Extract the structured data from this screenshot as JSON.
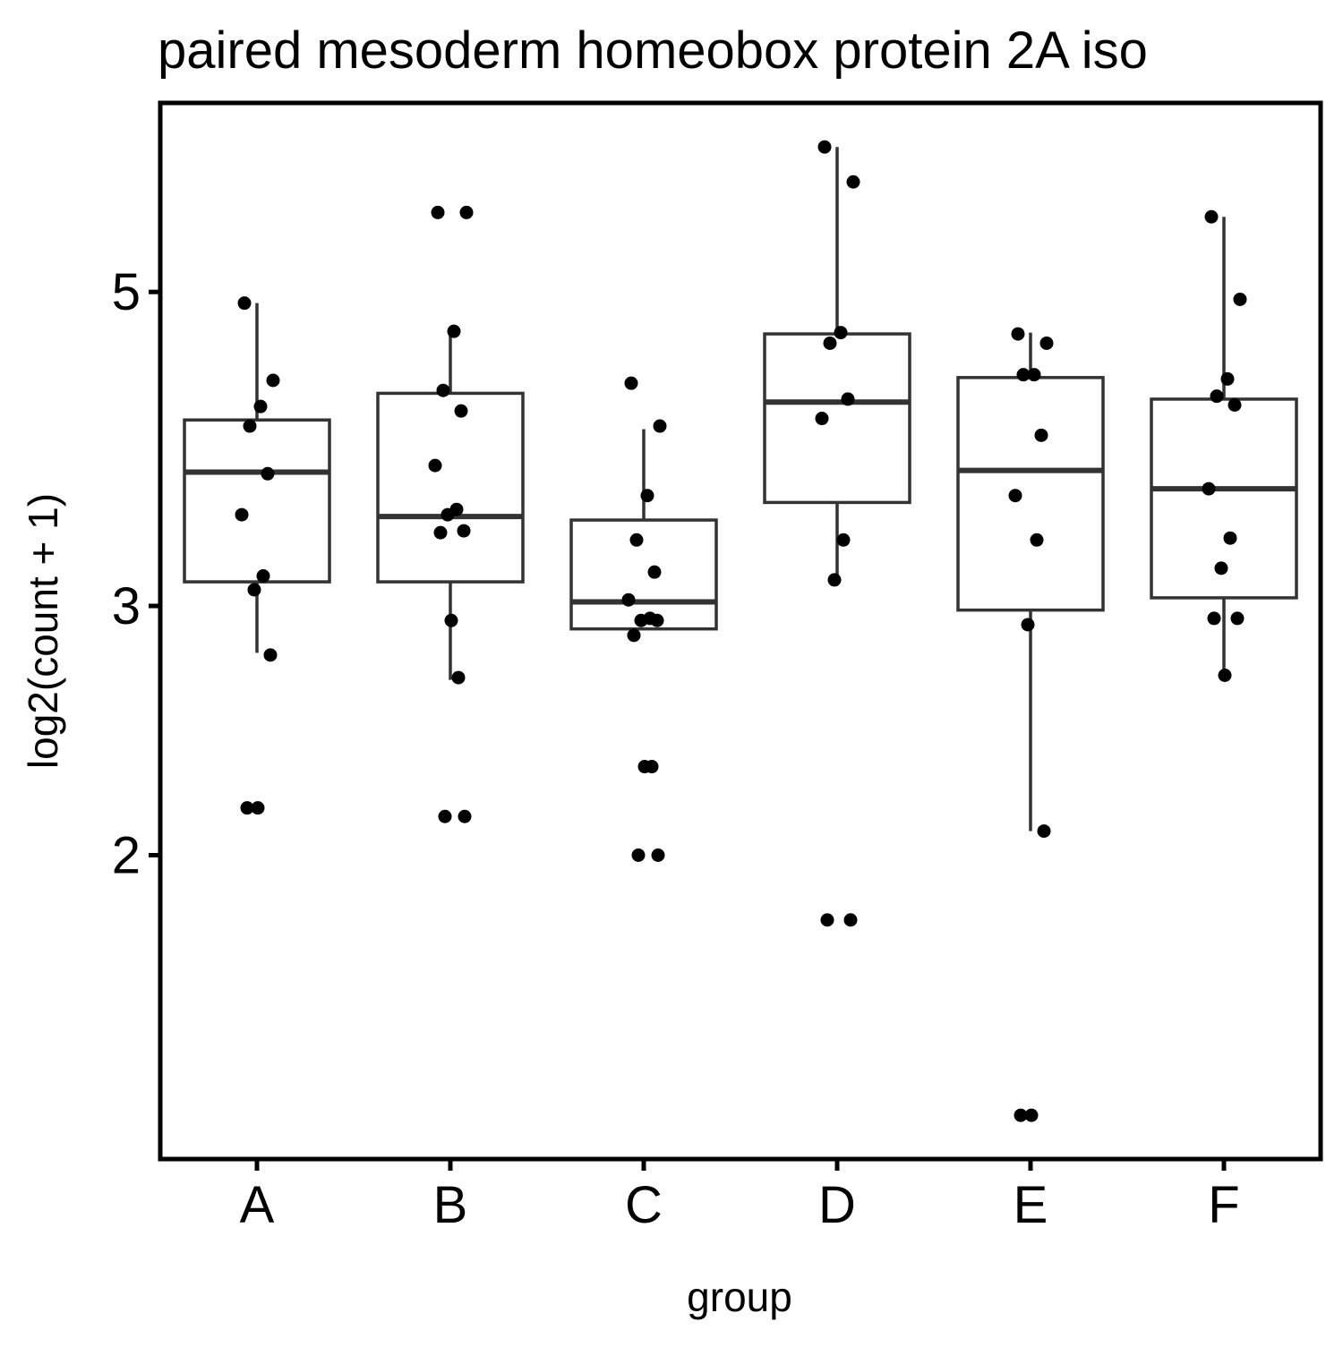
{
  "chart_data": {
    "type": "boxplot",
    "title": "paired mesoderm homeobox protein 2A iso",
    "xlabel": "group",
    "ylabel": "log2(count + 1)",
    "y_scale": "log",
    "ylim": [
      1.22,
      6.8
    ],
    "y_ticks": [
      2,
      3,
      5
    ],
    "categories": [
      "A",
      "B",
      "C",
      "D",
      "E",
      "F"
    ],
    "boxes": [
      {
        "group": "A",
        "whisker_low": 2.78,
        "q1": 3.12,
        "median": 3.73,
        "q3": 4.06,
        "whisker_high": 4.91
      },
      {
        "group": "B",
        "whisker_low": 2.66,
        "q1": 3.12,
        "median": 3.47,
        "q3": 4.24,
        "whisker_high": 4.68
      },
      {
        "group": "C",
        "whisker_low": 2.89,
        "q1": 2.89,
        "median": 3.02,
        "q3": 3.45,
        "whisker_high": 4.0
      },
      {
        "group": "D",
        "whisker_low": 3.11,
        "q1": 3.55,
        "median": 4.18,
        "q3": 4.67,
        "whisker_high": 6.33
      },
      {
        "group": "E",
        "whisker_low": 2.08,
        "q1": 2.98,
        "median": 3.74,
        "q3": 4.35,
        "whisker_high": 4.68
      },
      {
        "group": "F",
        "whisker_low": 2.68,
        "q1": 3.04,
        "median": 3.63,
        "q3": 4.2,
        "whisker_high": 5.65
      }
    ],
    "points": [
      {
        "group": "A",
        "values": [
          4.91,
          4.33,
          4.15,
          4.02,
          3.72,
          3.48,
          3.15,
          3.08,
          2.77,
          2.16,
          2.16
        ]
      },
      {
        "group": "B",
        "values": [
          5.69,
          5.69,
          4.69,
          4.26,
          4.12,
          3.77,
          3.51,
          3.48,
          3.39,
          3.38,
          2.93,
          2.67,
          2.13,
          2.13
        ]
      },
      {
        "group": "C",
        "values": [
          4.31,
          4.02,
          3.59,
          3.34,
          3.17,
          3.03,
          2.94,
          2.93,
          2.93,
          2.86,
          2.31,
          2.31,
          2.0,
          2.0
        ]
      },
      {
        "group": "D",
        "values": [
          6.33,
          5.98,
          4.68,
          4.6,
          4.2,
          4.07,
          3.34,
          3.13,
          1.8,
          1.8
        ]
      },
      {
        "group": "E",
        "values": [
          4.67,
          4.6,
          4.37,
          4.37,
          3.96,
          3.59,
          3.34,
          2.91,
          2.08,
          1.31,
          1.31
        ]
      },
      {
        "group": "F",
        "values": [
          5.65,
          4.94,
          4.34,
          4.22,
          4.16,
          3.63,
          3.35,
          3.19,
          2.94,
          2.94,
          2.68
        ]
      }
    ]
  }
}
